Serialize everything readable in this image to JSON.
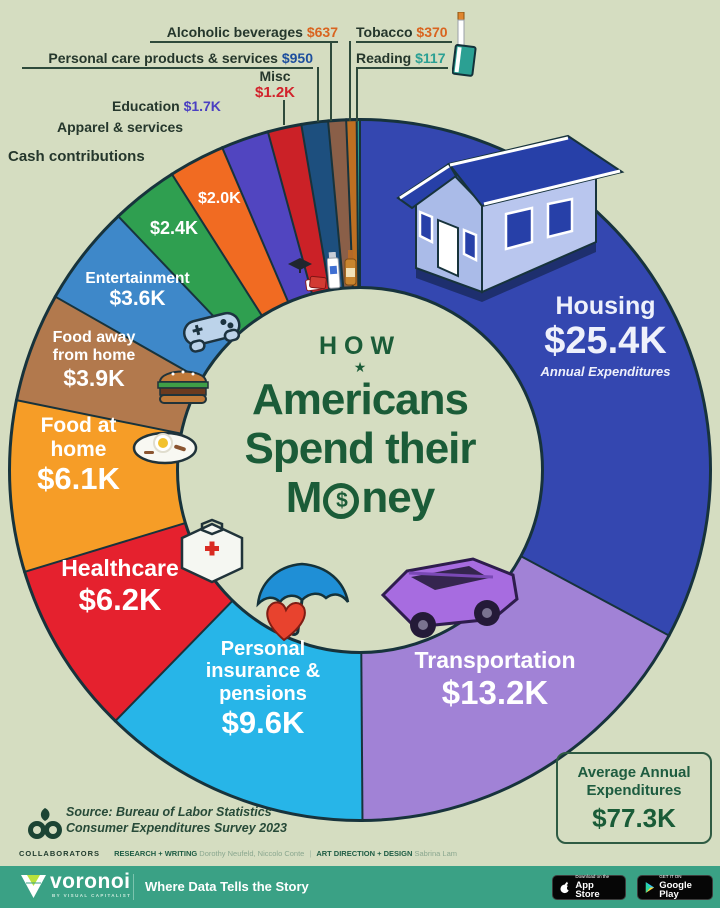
{
  "colors": {
    "background": "#d5ddc1",
    "outline": "#17333c",
    "title_green": "#1b5c38",
    "footer_green": "#3aa185",
    "annotation_text": "#25372c",
    "value_orange": "#d9641f",
    "value_navy": "#1d4f9e",
    "value_teal": "#2aa093",
    "value_red": "#d2222b",
    "value_indigo": "#4b40c2"
  },
  "chart_data": {
    "type": "pie",
    "title": "How Americans Spend their Money",
    "annual_note": "Annual Expenditures",
    "start_angle_deg": 0,
    "direction": "clockwise",
    "total_value_thousands": 77.3,
    "segments": [
      {
        "label": "Housing",
        "value": 25.4,
        "value_display": "$25.4K",
        "color": "#3447b0"
      },
      {
        "label": "Transportation",
        "value": 13.2,
        "value_display": "$13.2K",
        "color": "#a182d6"
      },
      {
        "label": "Personal insurance & pensions",
        "value": 9.6,
        "value_display": "$9.6K",
        "color": "#27b5e8"
      },
      {
        "label": "Healthcare",
        "value": 6.2,
        "value_display": "$6.2K",
        "color": "#e5212e"
      },
      {
        "label": "Food at home",
        "value": 6.1,
        "value_display": "$6.1K",
        "color": "#f69d27"
      },
      {
        "label": "Food away from home",
        "value": 3.9,
        "value_display": "$3.9K",
        "color": "#b2794d"
      },
      {
        "label": "Entertainment",
        "value": 3.6,
        "value_display": "$3.6K",
        "color": "#3e88c9"
      },
      {
        "label": "Cash contributions",
        "value": 2.4,
        "value_display": "$2.4K",
        "color": "#2f9f50"
      },
      {
        "label": "Apparel & services",
        "value": 2.0,
        "value_display": "$2.0K",
        "color": "#f16b22"
      },
      {
        "label": "Education",
        "value": 1.7,
        "value_display": "$1.7K",
        "color": "#5145c0"
      },
      {
        "label": "Misc",
        "value": 1.2,
        "value_display": "$1.2K",
        "color": "#cb2127"
      },
      {
        "label": "Personal care products & services",
        "value": 0.95,
        "value_display": "$950",
        "color": "#1d4f7e"
      },
      {
        "label": "Alcoholic beverages",
        "value": 0.637,
        "value_display": "$637",
        "color": "#8a5f48"
      },
      {
        "label": "Tobacco",
        "value": 0.37,
        "value_display": "$370",
        "color": "#bd6f22"
      },
      {
        "label": "Reading",
        "value": 0.117,
        "value_display": "$117",
        "color": "#2e9c8a"
      }
    ]
  },
  "center": {
    "how": "HOW",
    "star": "★",
    "americans": "Americans",
    "spend": "Spend their",
    "money_pre": "M",
    "money_symbol": "$",
    "money_post": "ney"
  },
  "summary": {
    "label": "Average Annual Expenditures",
    "value": "$77.3K"
  },
  "source": {
    "line1": "Source: Bureau of Labor Statistics",
    "line2": "Consumer Expenditures Survey 2023"
  },
  "collaborators": {
    "heading": "COLLABORATORS",
    "research_label": "RESEARCH + WRITING",
    "research_names": "Dorothy Neufeld, Niccolo Conte",
    "divider": "|",
    "design_label": "ART DIRECTION + DESIGN",
    "design_names": "Sabrina Lam"
  },
  "footer": {
    "brand": "voronoi",
    "brand_sub": "BY VISUAL CAPITALIST",
    "tagline": "Where Data Tells the Story",
    "appstore_pre": "Download on the",
    "appstore_name": "App Store",
    "googleplay_pre": "GET IT ON",
    "googleplay_name": "Google Play"
  }
}
